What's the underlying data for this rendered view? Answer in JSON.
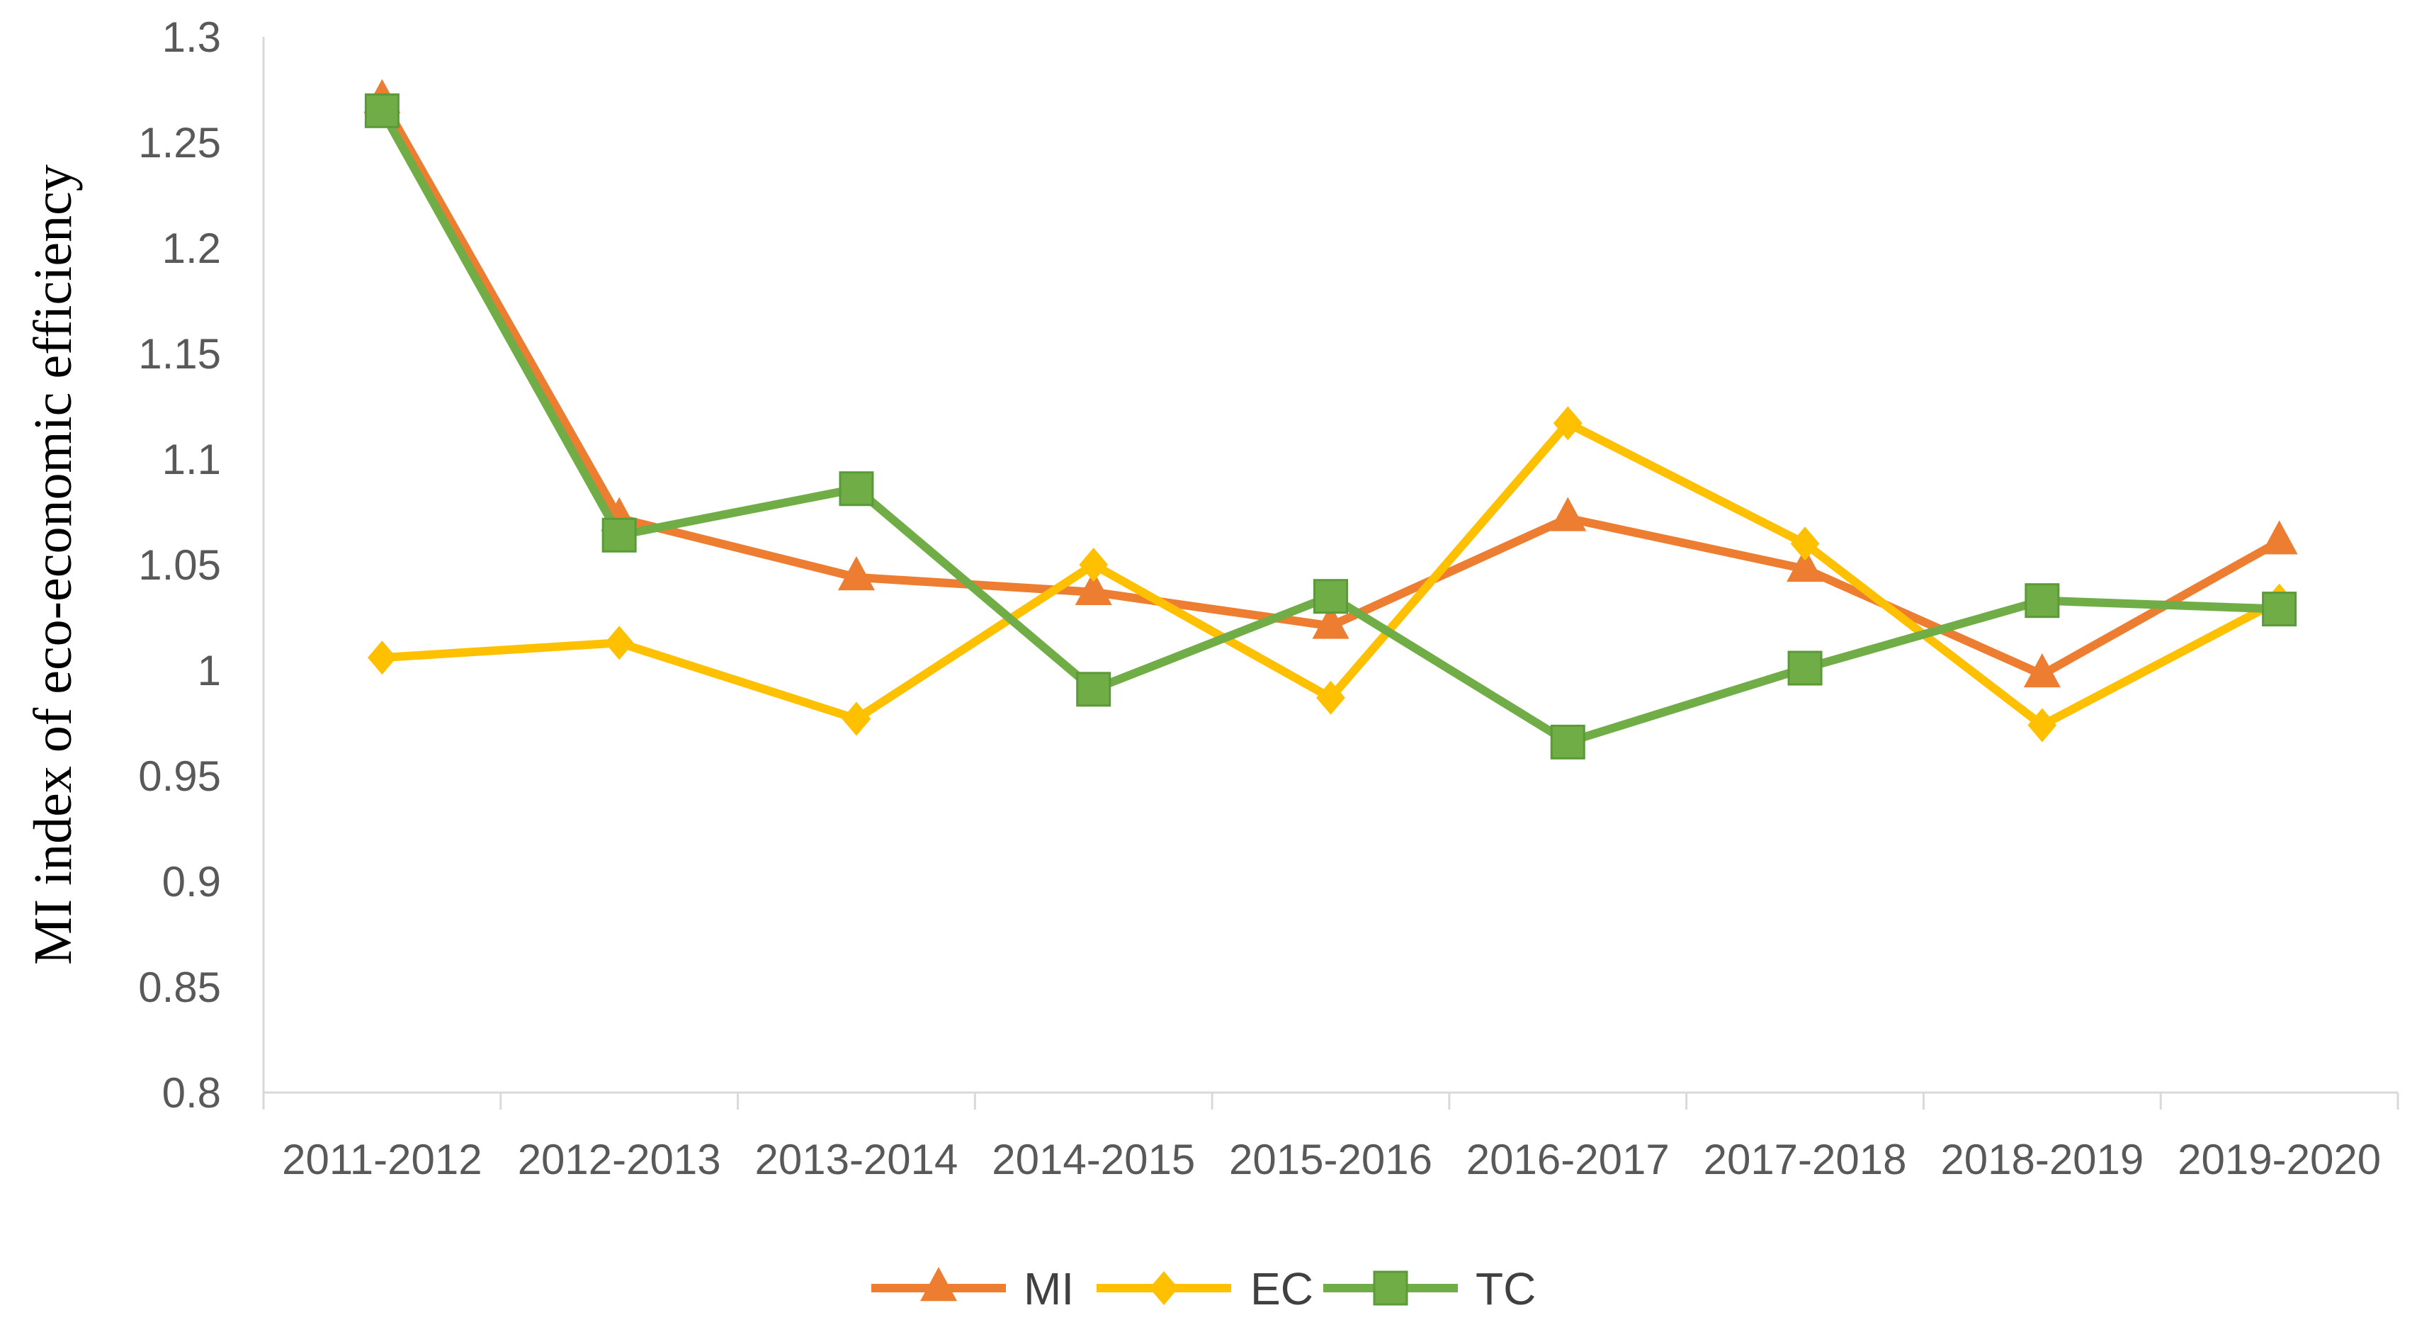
{
  "chart_data": {
    "type": "line",
    "title": "",
    "xlabel": "",
    "ylabel": "MI index of eco-economic efficiency",
    "categories": [
      "2011-2012",
      "2012-2013",
      "2013-2014",
      "2014-2015",
      "2015-2016",
      "2016-2017",
      "2017-2018",
      "2018-2019",
      "2019-2020"
    ],
    "y_ticks": [
      "0.8",
      "0.85",
      "0.9",
      "0.95",
      "1",
      "1.05",
      "1.1",
      "1.15",
      "1.2",
      "1.25",
      "1.3"
    ],
    "ylim": [
      0.8,
      1.3
    ],
    "grid": false,
    "legend_position": "bottom",
    "series": [
      {
        "name": "MI",
        "color": "#ED7D31",
        "marker": "triangle",
        "values": [
          1.27,
          1.072,
          1.044,
          1.037,
          1.021,
          1.072,
          1.048,
          0.998,
          1.061
        ]
      },
      {
        "name": "EC",
        "color": "#FFC000",
        "marker": "diamond",
        "values": [
          1.006,
          1.013,
          0.977,
          1.05,
          0.987,
          1.117,
          1.06,
          0.974,
          1.033
        ]
      },
      {
        "name": "TC",
        "color": "#70AD47",
        "marker": "square",
        "values": [
          1.265,
          1.064,
          1.086,
          0.991,
          1.035,
          0.966,
          1.001,
          1.033,
          1.029
        ]
      }
    ]
  }
}
